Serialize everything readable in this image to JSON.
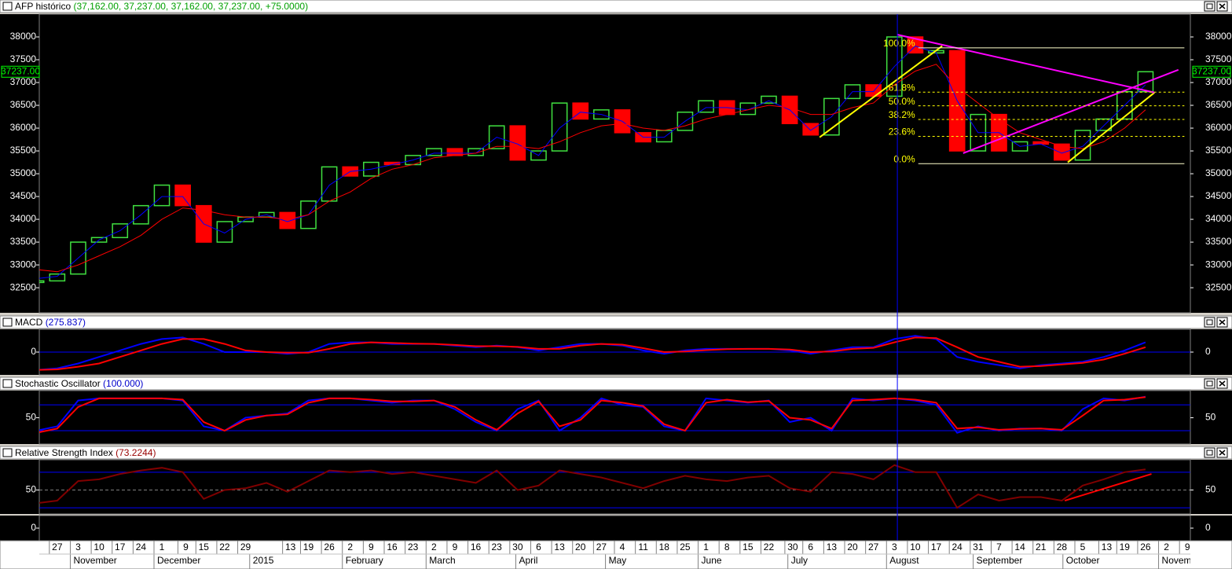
{
  "chart_data": [
    {
      "type": "linebreak",
      "title": "AFP histórico",
      "subtitle": "(37,162.00, 37,237.00, 37,162.00, 37,237.00, +75.0000)",
      "x": [
        "2014-10-20",
        "2014-10-27",
        "2014-11-03",
        "2014-11-10",
        "2014-11-17",
        "2014-11-24",
        "2014-12-01",
        "2014-12-08",
        "2014-12-15",
        "2014-12-22",
        "2014-12-29",
        "2015-01-05",
        "2015-01-12",
        "2015-01-19",
        "2015-01-26",
        "2015-02-02",
        "2015-02-09",
        "2015-02-16",
        "2015-02-23",
        "2015-03-02",
        "2015-03-09",
        "2015-03-16",
        "2015-03-23",
        "2015-03-30",
        "2015-04-06",
        "2015-04-13",
        "2015-04-20",
        "2015-04-27",
        "2015-05-04",
        "2015-05-11",
        "2015-05-18",
        "2015-05-25",
        "2015-06-01",
        "2015-06-08",
        "2015-06-15",
        "2015-06-22",
        "2015-06-29",
        "2015-07-06",
        "2015-07-13",
        "2015-07-20",
        "2015-07-27",
        "2015-08-03",
        "2015-08-10",
        "2015-08-17",
        "2015-08-24",
        "2015-08-31",
        "2015-09-07",
        "2015-09-14",
        "2015-09-21",
        "2015-09-28",
        "2015-10-05",
        "2015-10-12",
        "2015-10-19",
        "2015-10-26"
      ],
      "values": [
        32650,
        32800,
        33500,
        33600,
        33900,
        34300,
        34750,
        34300,
        33500,
        33950,
        34050,
        34150,
        33800,
        34400,
        35150,
        34950,
        35250,
        35200,
        35400,
        35550,
        35400,
        35550,
        36050,
        35300,
        35500,
        36550,
        36200,
        36400,
        35900,
        35700,
        35950,
        36350,
        36600,
        36300,
        36550,
        36700,
        36100,
        35850,
        36650,
        36950,
        36700,
        38000,
        37650,
        37700,
        35500,
        36300,
        35500,
        35700,
        35650,
        35300,
        35950,
        36200,
        36800,
        37237
      ],
      "up_color": "#40e040",
      "down_color": "#ff0000",
      "overlays": [
        {
          "color": "#0000ff",
          "values": [
            32700,
            32750,
            33150,
            33550,
            33750,
            34100,
            34500,
            34500,
            33900,
            33700,
            34000,
            34100,
            33950,
            34100,
            34750,
            35050,
            35100,
            35200,
            35300,
            35450,
            35450,
            35450,
            35800,
            35650,
            35400,
            36000,
            36350,
            36300,
            36150,
            35800,
            35800,
            36150,
            36450,
            36450,
            36400,
            36600,
            36400,
            35950,
            36250,
            36800,
            36800,
            37350,
            37800,
            37650,
            36600,
            35900,
            35900,
            35600,
            35650,
            35450,
            35600,
            36050,
            36500,
            36950
          ]
        },
        {
          "color": "#ff0000",
          "values": [
            32900,
            32850,
            33000,
            33200,
            33400,
            33650,
            34000,
            34250,
            34200,
            34100,
            34050,
            34050,
            34000,
            34100,
            34400,
            34600,
            34900,
            35100,
            35200,
            35350,
            35400,
            35450,
            35600,
            35600,
            35550,
            35700,
            35900,
            36050,
            36100,
            36000,
            35950,
            36050,
            36200,
            36300,
            36400,
            36500,
            36450,
            36300,
            36300,
            36450,
            36550,
            36950,
            37250,
            37400,
            36900,
            36550,
            36200,
            35900,
            35750,
            35600,
            35550,
            35700,
            36000,
            36400
          ]
        }
      ],
      "ylim": [
        31950,
        38500
      ],
      "yticks": [
        32500,
        33000,
        33500,
        34000,
        34500,
        35000,
        35500,
        36000,
        36500,
        37000,
        37500,
        38000
      ],
      "last_label": {
        "value": 37237,
        "label": "37237.00"
      },
      "fibonacci": {
        "start": "2015-08-11",
        "end": "2015-11-08",
        "color": "#ffff00",
        "levels": [
          {
            "value": 37760,
            "label": "100.0%"
          },
          {
            "value": 36790,
            "label": "61.8%"
          },
          {
            "value": 36490,
            "label": "50.0%"
          },
          {
            "value": 36190,
            "label": "38.2%"
          },
          {
            "value": 35820,
            "label": "23.6%"
          },
          {
            "value": 35220,
            "label": "0.0%"
          }
        ]
      },
      "trendlines": [
        {
          "color": "#ffff00",
          "from": [
            "2015-07-09",
            35800
          ],
          "to": [
            "2015-08-19",
            37800
          ]
        },
        {
          "color": "#ffff00",
          "from": [
            "2015-09-30",
            35250
          ],
          "to": [
            "2015-10-29",
            36780
          ]
        },
        {
          "color": "#ff00ff",
          "from": [
            "2015-08-04",
            38050
          ],
          "to": [
            "2015-10-29",
            36780
          ]
        },
        {
          "color": "#ff00ff",
          "from": [
            "2015-08-26",
            35450
          ],
          "to": [
            "2015-11-06",
            37280
          ]
        }
      ],
      "cursor": "2015-08-04",
      "xlim": [
        "2014-10-21",
        "2015-11-10"
      ],
      "xticks": [
        {
          "value": "2014-10-27",
          "label": "27"
        },
        {
          "value": "2014-11-03",
          "label": "3"
        },
        {
          "value": "2014-11-10",
          "label": "10"
        },
        {
          "value": "2014-11-17",
          "label": "17"
        },
        {
          "value": "2014-11-24",
          "label": "24"
        },
        {
          "value": "2014-12-01",
          "label": "1"
        },
        {
          "value": "2014-12-09",
          "label": "9"
        },
        {
          "value": "2014-12-15",
          "label": "15"
        },
        {
          "value": "2014-12-22",
          "label": "22"
        },
        {
          "value": "2014-12-29",
          "label": "29"
        },
        {
          "value": "2015-01-13",
          "label": "13"
        },
        {
          "value": "2015-01-19",
          "label": "19"
        },
        {
          "value": "2015-01-26",
          "label": "26"
        },
        {
          "value": "2015-02-02",
          "label": "2"
        },
        {
          "value": "2015-02-09",
          "label": "9"
        },
        {
          "value": "2015-02-16",
          "label": "16"
        },
        {
          "value": "2015-02-23",
          "label": "23"
        },
        {
          "value": "2015-03-02",
          "label": "2"
        },
        {
          "value": "2015-03-09",
          "label": "9"
        },
        {
          "value": "2015-03-16",
          "label": "16"
        },
        {
          "value": "2015-03-23",
          "label": "23"
        },
        {
          "value": "2015-03-30",
          "label": "30"
        },
        {
          "value": "2015-04-06",
          "label": "6"
        },
        {
          "value": "2015-04-13",
          "label": "13"
        },
        {
          "value": "2015-04-20",
          "label": "20"
        },
        {
          "value": "2015-04-27",
          "label": "27"
        },
        {
          "value": "2015-05-04",
          "label": "4"
        },
        {
          "value": "2015-05-11",
          "label": "11"
        },
        {
          "value": "2015-05-18",
          "label": "18"
        },
        {
          "value": "2015-05-25",
          "label": "25"
        },
        {
          "value": "2015-06-01",
          "label": "1"
        },
        {
          "value": "2015-06-08",
          "label": "8"
        },
        {
          "value": "2015-06-15",
          "label": "15"
        },
        {
          "value": "2015-06-22",
          "label": "22"
        },
        {
          "value": "2015-06-30",
          "label": "30"
        },
        {
          "value": "2015-07-06",
          "label": "6"
        },
        {
          "value": "2015-07-13",
          "label": "13"
        },
        {
          "value": "2015-07-20",
          "label": "20"
        },
        {
          "value": "2015-07-27",
          "label": "27"
        },
        {
          "value": "2015-08-03",
          "label": "3"
        },
        {
          "value": "2015-08-10",
          "label": "10"
        },
        {
          "value": "2015-08-17",
          "label": "17"
        },
        {
          "value": "2015-08-24",
          "label": "24"
        },
        {
          "value": "2015-08-31",
          "label": "31"
        },
        {
          "value": "2015-09-07",
          "label": "7"
        },
        {
          "value": "2015-09-14",
          "label": "14"
        },
        {
          "value": "2015-09-21",
          "label": "21"
        },
        {
          "value": "2015-09-28",
          "label": "28"
        },
        {
          "value": "2015-10-05",
          "label": "5"
        },
        {
          "value": "2015-10-13",
          "label": "13"
        },
        {
          "value": "2015-10-19",
          "label": "19"
        },
        {
          "value": "2015-10-26",
          "label": "26"
        },
        {
          "value": "2015-11-02",
          "label": "2"
        },
        {
          "value": "2015-11-09",
          "label": "9"
        }
      ],
      "month_ticks": [
        {
          "value": "2014-11-03",
          "label": "November"
        },
        {
          "value": "2014-12-01",
          "label": "December"
        },
        {
          "value": "2015-01-02",
          "label": "2015"
        },
        {
          "value": "2015-02-02",
          "label": "February"
        },
        {
          "value": "2015-03-02",
          "label": "March"
        },
        {
          "value": "2015-04-01",
          "label": "April"
        },
        {
          "value": "2015-05-01",
          "label": "May"
        },
        {
          "value": "2015-06-01",
          "label": "June"
        },
        {
          "value": "2015-07-01",
          "label": "July"
        },
        {
          "value": "2015-08-03",
          "label": "August"
        },
        {
          "value": "2015-09-01",
          "label": "September"
        },
        {
          "value": "2015-10-01",
          "label": "October"
        },
        {
          "value": "2015-11-02",
          "label": "November"
        }
      ]
    },
    {
      "type": "line",
      "title": "MACD",
      "subtitle": "(275.837)",
      "subtitle_color": "#0000cc",
      "series": [
        {
          "color": "#0000ff",
          "values": [
            -550,
            -500,
            -350,
            -150,
            50,
            250,
            400,
            450,
            250,
            0,
            0,
            0,
            -50,
            0,
            250,
            300,
            300,
            250,
            250,
            250,
            200,
            150,
            200,
            150,
            50,
            150,
            250,
            250,
            200,
            50,
            -50,
            50,
            100,
            100,
            100,
            100,
            50,
            -50,
            50,
            150,
            150,
            400,
            500,
            400,
            -150,
            -300,
            -400,
            -500,
            -400,
            -350,
            -300,
            -150,
            50,
            300
          ]
        },
        {
          "color": "#ff0000",
          "values": [
            -550,
            -530,
            -450,
            -350,
            -150,
            50,
            250,
            400,
            400,
            250,
            50,
            0,
            -20,
            -20,
            100,
            250,
            300,
            280,
            260,
            250,
            220,
            180,
            180,
            160,
            100,
            100,
            200,
            250,
            230,
            120,
            0,
            20,
            60,
            90,
            100,
            100,
            80,
            0,
            20,
            100,
            130,
            300,
            450,
            430,
            150,
            -150,
            -300,
            -450,
            -430,
            -380,
            -330,
            -230,
            -50,
            150
          ]
        }
      ],
      "ylim": [
        -700,
        700
      ],
      "yticks": [
        0
      ],
      "hlines": [
        0
      ]
    },
    {
      "type": "line",
      "title": "Stochastic Oscillator",
      "subtitle": "(100.000)",
      "subtitle_color": "#0000cc",
      "series": [
        {
          "color": "#0000ff",
          "values": [
            20,
            30,
            90,
            95,
            95,
            95,
            95,
            90,
            30,
            20,
            50,
            55,
            60,
            90,
            95,
            95,
            90,
            85,
            90,
            90,
            70,
            40,
            20,
            70,
            90,
            20,
            50,
            95,
            80,
            75,
            30,
            20,
            95,
            90,
            85,
            90,
            40,
            50,
            20,
            95,
            90,
            95,
            90,
            80,
            15,
            30,
            20,
            25,
            25,
            20,
            70,
            95,
            90,
            99
          ]
        },
        {
          "color": "#ff0000",
          "values": [
            15,
            25,
            75,
            95,
            95,
            95,
            95,
            92,
            40,
            20,
            45,
            55,
            58,
            85,
            95,
            95,
            92,
            88,
            88,
            90,
            75,
            45,
            22,
            60,
            88,
            30,
            45,
            90,
            85,
            77,
            35,
            20,
            85,
            92,
            86,
            89,
            50,
            45,
            25,
            90,
            92,
            95,
            92,
            85,
            25,
            28,
            22,
            24,
            25,
            22,
            55,
            90,
            92,
            98
          ]
        }
      ],
      "ylim": [
        -11,
        113
      ],
      "yticks": [
        50
      ],
      "hlines": [
        20,
        80
      ]
    },
    {
      "type": "line",
      "title": "Relative Strength Index",
      "subtitle": "(73.2244)",
      "subtitle_color": "#990000",
      "series": [
        {
          "color": "#800000",
          "values": [
            35,
            38,
            60,
            62,
            68,
            72,
            75,
            70,
            40,
            50,
            52,
            58,
            48,
            60,
            72,
            70,
            72,
            68,
            70,
            66,
            62,
            58,
            72,
            50,
            55,
            72,
            68,
            64,
            58,
            52,
            60,
            66,
            62,
            60,
            64,
            66,
            52,
            48,
            70,
            68,
            62,
            78,
            70,
            70,
            30,
            45,
            38,
            42,
            42,
            38,
            55,
            62,
            70,
            73.2244
          ]
        }
      ],
      "trendlines": [
        {
          "color": "#ff0000",
          "from": [
            "2015-09-29",
            38
          ],
          "to": [
            "2015-10-28",
            68
          ]
        }
      ],
      "ylim": [
        23,
        84
      ],
      "yticks": [
        50
      ],
      "hlines": [
        30,
        70
      ],
      "dashed_hlines": [
        50
      ]
    },
    {
      "type": "empty",
      "ylim": [
        -1,
        1
      ],
      "yticks": [
        0
      ]
    }
  ]
}
